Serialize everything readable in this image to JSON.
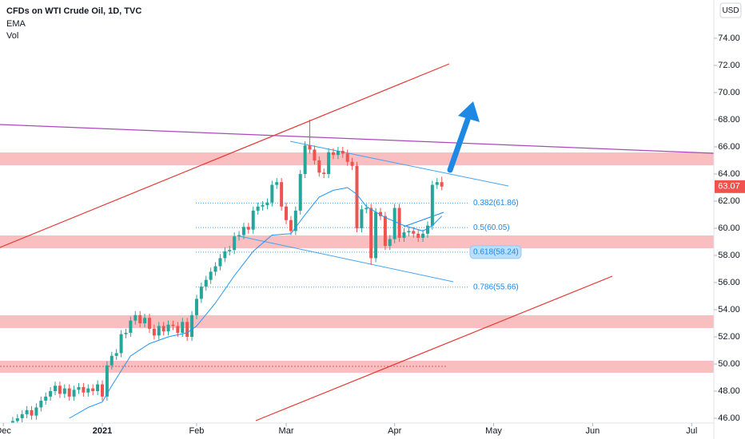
{
  "chart_data": {
    "type": "candlestick",
    "title": "CFDs on WTI Crude Oil, 1D, TVC",
    "indicators": [
      "EMA",
      "Vol"
    ],
    "currency": "USD",
    "up_color": "#26a69a",
    "down_color": "#ef5350",
    "x": [
      -19,
      -18,
      -17,
      -16,
      -15,
      -14,
      -13,
      -12,
      -11,
      -10,
      -9,
      -8,
      -7,
      -6,
      -5,
      -4,
      -3,
      -2,
      -1,
      0,
      1,
      2,
      3,
      4,
      5,
      6,
      7,
      8,
      9,
      10,
      11,
      12,
      13,
      14,
      15,
      16,
      17,
      18,
      19,
      20,
      21,
      22,
      23,
      24,
      25,
      26,
      27,
      28,
      29,
      30,
      31,
      32,
      33,
      34,
      35,
      36,
      37,
      38,
      39,
      40,
      41,
      42,
      43,
      44,
      45,
      46,
      47,
      48,
      49,
      50,
      51,
      52,
      53,
      54,
      55,
      56,
      57,
      58,
      59,
      60,
      61,
      62,
      63,
      64,
      65,
      66,
      67,
      68,
      69,
      70,
      71,
      72
    ],
    "open": [
      45.5,
      45.8,
      46.0,
      46.3,
      46.6,
      46.2,
      46.8,
      47.3,
      47.6,
      48.0,
      48.4,
      47.8,
      48.2,
      47.6,
      48.1,
      48.3,
      47.9,
      48.2,
      48.0,
      48.5,
      47.6,
      49.9,
      50.6,
      50.8,
      52.2,
      52.3,
      53.2,
      53.6,
      53.0,
      53.4,
      52.6,
      52.1,
      52.8,
      52.4,
      52.9,
      52.8,
      52.3,
      53.1,
      52.0,
      53.6,
      54.8,
      55.7,
      56.2,
      56.8,
      57.2,
      57.8,
      58.3,
      58.4,
      59.4,
      59.5,
      60.1,
      59.9,
      61.3,
      61.6,
      61.7,
      61.9,
      63.2,
      63.4,
      61.6,
      60.6,
      59.8,
      61.3,
      64.0,
      66.1,
      65.8,
      65.0,
      64.1,
      64.0,
      65.6,
      65.4,
      65.7,
      65.5,
      64.9,
      64.6,
      60.0,
      61.4,
      61.5,
      57.8,
      61.2,
      60.9,
      58.7,
      59.2,
      61.5,
      59.3,
      59.7,
      59.8,
      59.6,
      59.3,
      59.6,
      60.2,
      63.2,
      63.4
    ],
    "high": [
      46.1,
      46.3,
      46.6,
      46.9,
      46.9,
      47.1,
      47.6,
      47.9,
      48.3,
      48.7,
      48.7,
      48.5,
      48.5,
      48.4,
      48.6,
      48.6,
      48.5,
      48.5,
      48.8,
      48.8,
      50.2,
      50.9,
      51.1,
      52.5,
      52.6,
      53.5,
      53.9,
      53.9,
      53.7,
      53.7,
      52.9,
      53.1,
      53.1,
      53.2,
      53.2,
      53.1,
      53.4,
      53.4,
      53.9,
      55.1,
      56.0,
      56.5,
      57.1,
      57.5,
      58.1,
      58.6,
      58.7,
      59.7,
      59.8,
      60.4,
      60.4,
      61.6,
      61.9,
      62.0,
      62.2,
      63.5,
      63.7,
      63.7,
      61.9,
      60.9,
      61.6,
      64.3,
      66.4,
      68.0,
      66.1,
      65.3,
      64.4,
      65.9,
      65.9,
      66.0,
      66.0,
      65.8,
      65.2,
      64.9,
      61.7,
      61.8,
      61.8,
      61.5,
      61.5,
      61.2,
      59.5,
      61.8,
      61.8,
      60.0,
      60.1,
      60.1,
      59.9,
      59.9,
      60.5,
      63.5,
      63.7,
      63.8
    ],
    "low": [
      45.2,
      45.5,
      45.7,
      46.0,
      45.9,
      45.9,
      46.5,
      47.0,
      47.3,
      47.7,
      47.5,
      47.5,
      47.3,
      47.3,
      47.8,
      47.6,
      47.6,
      47.7,
      47.7,
      47.3,
      47.3,
      49.6,
      50.3,
      50.5,
      51.9,
      52.0,
      52.9,
      52.7,
      52.7,
      52.3,
      51.8,
      51.8,
      52.1,
      52.1,
      52.5,
      52.0,
      52.0,
      51.7,
      51.7,
      53.3,
      54.5,
      55.4,
      55.9,
      56.5,
      56.9,
      57.5,
      58.0,
      58.1,
      59.1,
      59.2,
      59.6,
      59.6,
      61.0,
      61.3,
      61.4,
      61.6,
      62.9,
      61.3,
      60.3,
      59.5,
      59.5,
      61.0,
      63.7,
      65.5,
      64.7,
      63.8,
      63.7,
      63.7,
      65.1,
      65.1,
      65.2,
      64.6,
      64.3,
      59.7,
      59.7,
      61.1,
      57.3,
      57.5,
      60.6,
      58.4,
      58.4,
      58.9,
      59.0,
      59.0,
      59.4,
      59.3,
      59.0,
      59.0,
      59.3,
      59.9,
      62.9,
      62.8
    ],
    "close": [
      45.8,
      46.0,
      46.3,
      46.6,
      46.2,
      46.8,
      47.3,
      47.6,
      48.0,
      48.4,
      47.8,
      48.2,
      47.6,
      48.1,
      48.3,
      47.9,
      48.2,
      48.0,
      48.5,
      47.6,
      49.9,
      50.6,
      50.8,
      52.2,
      52.3,
      53.2,
      53.6,
      53.0,
      53.4,
      52.6,
      52.1,
      52.8,
      52.4,
      52.9,
      52.8,
      52.3,
      53.1,
      52.0,
      53.6,
      54.8,
      55.7,
      56.2,
      56.8,
      57.2,
      57.8,
      58.3,
      58.4,
      59.4,
      59.5,
      60.1,
      59.9,
      61.3,
      61.6,
      61.7,
      61.9,
      63.2,
      63.4,
      61.6,
      60.6,
      59.8,
      61.3,
      64.0,
      66.1,
      65.8,
      65.0,
      64.1,
      64.0,
      65.6,
      65.4,
      65.7,
      65.5,
      64.9,
      64.6,
      60.0,
      61.4,
      61.5,
      57.8,
      61.2,
      60.9,
      58.7,
      59.2,
      61.5,
      59.3,
      59.7,
      59.8,
      59.6,
      59.3,
      59.6,
      60.2,
      63.2,
      63.4,
      63.07
    ],
    "ema": {
      "color": "#2196f3",
      "x": [
        -7,
        -3,
        0,
        2,
        4,
        6,
        10,
        14,
        18,
        20,
        24,
        28,
        32,
        36,
        40,
        43,
        46,
        49,
        52,
        54,
        56,
        60,
        64,
        68,
        70,
        72
      ],
      "values": [
        46.0,
        46.8,
        47.2,
        48.4,
        49.5,
        50.6,
        51.5,
        52.0,
        52.3,
        52.8,
        54.5,
        56.5,
        58.3,
        59.5,
        59.6,
        61.0,
        62.3,
        62.8,
        63.0,
        62.5,
        61.6,
        60.8,
        60.2,
        59.8,
        60.2,
        60.9
      ]
    },
    "fib_levels": [
      {
        "value": 61.86,
        "label": "0.382(61.86)"
      },
      {
        "value": 60.05,
        "label": "0.5(60.05)"
      },
      {
        "value": 58.24,
        "label": "0.618(58.24)"
      },
      {
        "value": 55.66,
        "label": "0.786(55.66)"
      }
    ],
    "xlim": [
      -21.7,
      129.7
    ],
    "ylim": [
      45.65,
      76.82
    ],
    "xticks": [
      {
        "value": -21,
        "label": "Dec"
      },
      {
        "value": 0,
        "label": "2021"
      },
      {
        "value": 20,
        "label": "Feb"
      },
      {
        "value": 39,
        "label": "Mar"
      },
      {
        "value": 62,
        "label": "Apr"
      },
      {
        "value": 83,
        "label": "May"
      },
      {
        "value": 104,
        "label": "Jun"
      },
      {
        "value": 125,
        "label": "Jul"
      }
    ],
    "yticks": [
      {
        "value": 46,
        "label": "46.00"
      },
      {
        "value": 48,
        "label": "48.00"
      },
      {
        "value": 50,
        "label": "50.00"
      },
      {
        "value": 52,
        "label": "52.00"
      },
      {
        "value": 54,
        "label": "54.00"
      },
      {
        "value": 56,
        "label": "56.00"
      },
      {
        "value": 58,
        "label": "58.00"
      },
      {
        "value": 60,
        "label": "60.00"
      },
      {
        "value": 62,
        "label": "62.00"
      },
      {
        "value": 64,
        "label": "64.00"
      },
      {
        "value": 66,
        "label": "66.00"
      },
      {
        "value": 68,
        "label": "68.00"
      },
      {
        "value": 70,
        "label": "70.00"
      },
      {
        "value": 72,
        "label": "72.00"
      },
      {
        "value": 74,
        "label": "74.00"
      }
    ],
    "grid": false
  }
}
